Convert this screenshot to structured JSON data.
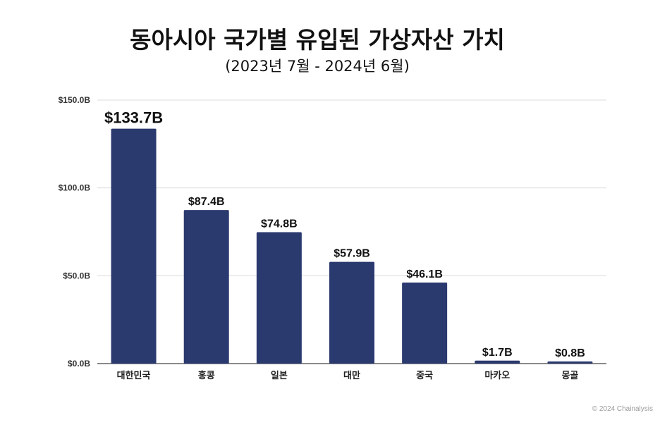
{
  "chart_data": {
    "type": "bar",
    "title": "동아시아 국가별 유입된 가상자산 가치",
    "subtitle": "(2023년 7월 - 2024년 6월)",
    "categories": [
      "대한민국",
      "홍콩",
      "일본",
      "대만",
      "중국",
      "마카오",
      "몽골"
    ],
    "values": [
      133.7,
      87.4,
      74.8,
      57.9,
      46.1,
      1.7,
      0.8
    ],
    "data_labels": [
      "$133.7B",
      "$87.4B",
      "$74.8B",
      "$57.9B",
      "$46.1B",
      "$1.7B",
      "$0.8B"
    ],
    "ylim": [
      0,
      150
    ],
    "yticks": [
      0,
      50,
      100,
      150
    ],
    "ytick_labels": [
      "$0.0B",
      "$50.0B",
      "$100.0B",
      "$150.0B"
    ],
    "xlabel": "",
    "ylabel": "",
    "grid": true,
    "bar_color": "#2a396e"
  },
  "credit": "© 2024 Chainalysis"
}
